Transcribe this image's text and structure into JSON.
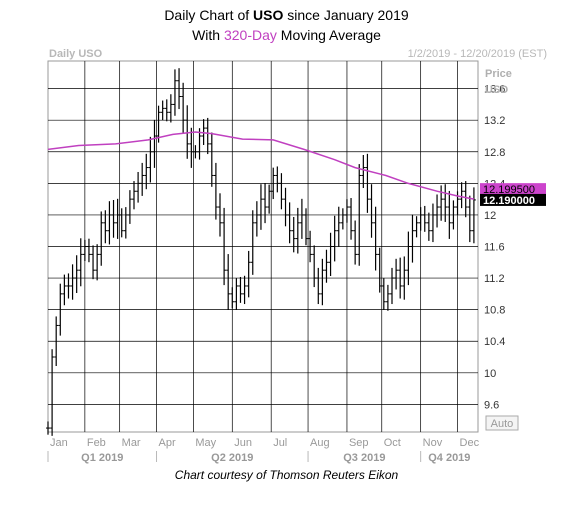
{
  "title_prefix": "Daily Chart of ",
  "title_symbol": "USO",
  "title_suffix": " since January 2019",
  "subtitle_prefix": "With ",
  "subtitle_highlight": "320-Day",
  "subtitle_suffix": " Moving Average",
  "ticker_label": "Daily USO",
  "date_range": "1/2/2019 - 12/20/2019 (EST)",
  "caption": "Chart courtesy of Thomson Reuters Eikon",
  "auto_label": "Auto",
  "colors": {
    "moving_average": "#c040c0",
    "price_bars": "#000000",
    "grid": "#000000",
    "ma_badge": "#cc44cc",
    "last_badge": "#000000"
  },
  "chart_data": {
    "type": "ohlc",
    "ylabel_lines": [
      "Price",
      "USD"
    ],
    "ylim": [
      9.25,
      13.95
    ],
    "yticks": [
      "13.6",
      "13.2",
      "12.8",
      "12.4",
      "12",
      "11.6",
      "11.2",
      "10.8",
      "10.4",
      "10",
      "9.6"
    ],
    "months": [
      "Jan",
      "Feb",
      "Mar",
      "Apr",
      "May",
      "Jun",
      "Jul",
      "Aug",
      "Sep",
      "Oct",
      "Nov",
      "Dec"
    ],
    "quarters": [
      "Q1 2019",
      "Q2 2019",
      "Q3 2019",
      "Q4 2019"
    ],
    "series": [
      {
        "name": "320-Day",
        "kind": "moving_average",
        "last_value_label": "12.199500",
        "points": [
          [
            0,
            12.83
          ],
          [
            15,
            12.88
          ],
          [
            33,
            12.9
          ],
          [
            49,
            12.95
          ],
          [
            61,
            13.02
          ],
          [
            72,
            13.05
          ],
          [
            80,
            13.03
          ],
          [
            95,
            12.96
          ],
          [
            110,
            12.95
          ],
          [
            125,
            12.83
          ],
          [
            140,
            12.7
          ],
          [
            150,
            12.6
          ],
          [
            165,
            12.5
          ],
          [
            176,
            12.4
          ],
          [
            190,
            12.3
          ],
          [
            200,
            12.24
          ],
          [
            208,
            12.2
          ]
        ]
      },
      {
        "name": "USO",
        "kind": "price",
        "last_value_label": "12.190000",
        "points": [
          [
            0,
            9.3
          ],
          [
            2,
            10.2
          ],
          [
            4,
            10.6
          ],
          [
            6,
            11.0
          ],
          [
            8,
            11.1
          ],
          [
            10,
            11.1
          ],
          [
            12,
            11.2
          ],
          [
            14,
            11.3
          ],
          [
            16,
            11.5
          ],
          [
            18,
            11.6
          ],
          [
            20,
            11.5
          ],
          [
            22,
            11.3
          ],
          [
            24,
            11.5
          ],
          [
            26,
            11.9
          ],
          [
            28,
            11.8
          ],
          [
            30,
            12.0
          ],
          [
            32,
            11.9
          ],
          [
            34,
            12.0
          ],
          [
            36,
            11.8
          ],
          [
            38,
            12.0
          ],
          [
            40,
            12.2
          ],
          [
            42,
            12.3
          ],
          [
            44,
            12.4
          ],
          [
            46,
            12.5
          ],
          [
            48,
            12.6
          ],
          [
            50,
            12.8
          ],
          [
            52,
            13.0
          ],
          [
            54,
            13.3
          ],
          [
            56,
            13.35
          ],
          [
            58,
            13.3
          ],
          [
            60,
            13.4
          ],
          [
            62,
            13.7
          ],
          [
            64,
            13.5
          ],
          [
            66,
            13.2
          ],
          [
            68,
            12.9
          ],
          [
            70,
            12.8
          ],
          [
            72,
            12.8
          ],
          [
            74,
            13.0
          ],
          [
            76,
            13.1
          ],
          [
            78,
            12.9
          ],
          [
            80,
            12.5
          ],
          [
            82,
            12.1
          ],
          [
            84,
            11.9
          ],
          [
            86,
            11.3
          ],
          [
            88,
            11.0
          ],
          [
            90,
            10.9
          ],
          [
            92,
            11.1
          ],
          [
            94,
            11.0
          ],
          [
            96,
            11.1
          ],
          [
            98,
            11.4
          ],
          [
            100,
            11.9
          ],
          [
            102,
            12.0
          ],
          [
            104,
            12.2
          ],
          [
            106,
            12.1
          ],
          [
            108,
            12.3
          ],
          [
            110,
            12.5
          ],
          [
            112,
            12.4
          ],
          [
            114,
            12.2
          ],
          [
            116,
            12.0
          ],
          [
            118,
            11.8
          ],
          [
            120,
            11.7
          ],
          [
            122,
            11.9
          ],
          [
            124,
            12.0
          ],
          [
            126,
            11.7
          ],
          [
            128,
            11.5
          ],
          [
            130,
            11.2
          ],
          [
            132,
            11.0
          ],
          [
            134,
            11.3
          ],
          [
            136,
            11.4
          ],
          [
            138,
            11.6
          ],
          [
            140,
            11.8
          ],
          [
            142,
            11.9
          ],
          [
            144,
            12.0
          ],
          [
            146,
            12.1
          ],
          [
            148,
            11.8
          ],
          [
            150,
            11.5
          ],
          [
            152,
            12.5
          ],
          [
            154,
            12.6
          ],
          [
            156,
            12.2
          ],
          [
            158,
            11.9
          ],
          [
            160,
            11.5
          ],
          [
            162,
            11.1
          ],
          [
            164,
            10.9
          ],
          [
            166,
            11.0
          ],
          [
            168,
            11.2
          ],
          [
            170,
            11.3
          ],
          [
            172,
            11.1
          ],
          [
            174,
            11.3
          ],
          [
            176,
            11.6
          ],
          [
            178,
            11.8
          ],
          [
            180,
            11.9
          ],
          [
            182,
            12.0
          ],
          [
            184,
            11.9
          ],
          [
            186,
            11.8
          ],
          [
            188,
            12.0
          ],
          [
            190,
            12.1
          ],
          [
            192,
            12.2
          ],
          [
            194,
            12.1
          ],
          [
            196,
            11.9
          ],
          [
            198,
            12.1
          ],
          [
            200,
            12.2
          ],
          [
            202,
            12.3
          ],
          [
            204,
            12.1
          ],
          [
            206,
            11.8
          ],
          [
            208,
            12.19
          ]
        ]
      }
    ]
  }
}
